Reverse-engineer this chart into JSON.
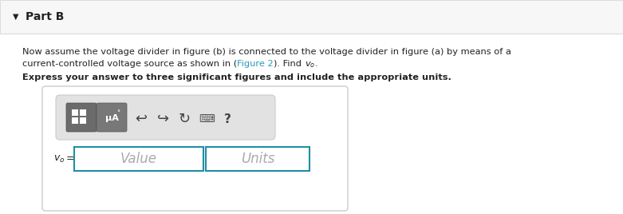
{
  "bg_color": "#f8f8f8",
  "white_bg": "#ffffff",
  "header_bg": "#f7f7f7",
  "header_text": "Part B",
  "body_text_line1": "Now assume the voltage divider in figure (b) is connected to the voltage divider in figure (a) by means of a",
  "body_text_line2_pre": "current-controlled voltage source as shown in (",
  "body_text_link": "Figure 2",
  "body_text_line2_post": "). Find ",
  "bold_text": "Express your answer to three significant figures and include the appropriate units.",
  "value_placeholder": "Value",
  "units_placeholder": "Units",
  "link_color": "#2b9ab8",
  "text_color": "#222222",
  "header_border": "#dddddd",
  "container_border": "#cccccc",
  "input_border_color": "#1f8fa3",
  "toolbar_bg": "#e4e4e4",
  "icon_bg_dark": "#707070",
  "icon_bg_darker": "#5a5a5a",
  "placeholder_color": "#aaaaaa"
}
